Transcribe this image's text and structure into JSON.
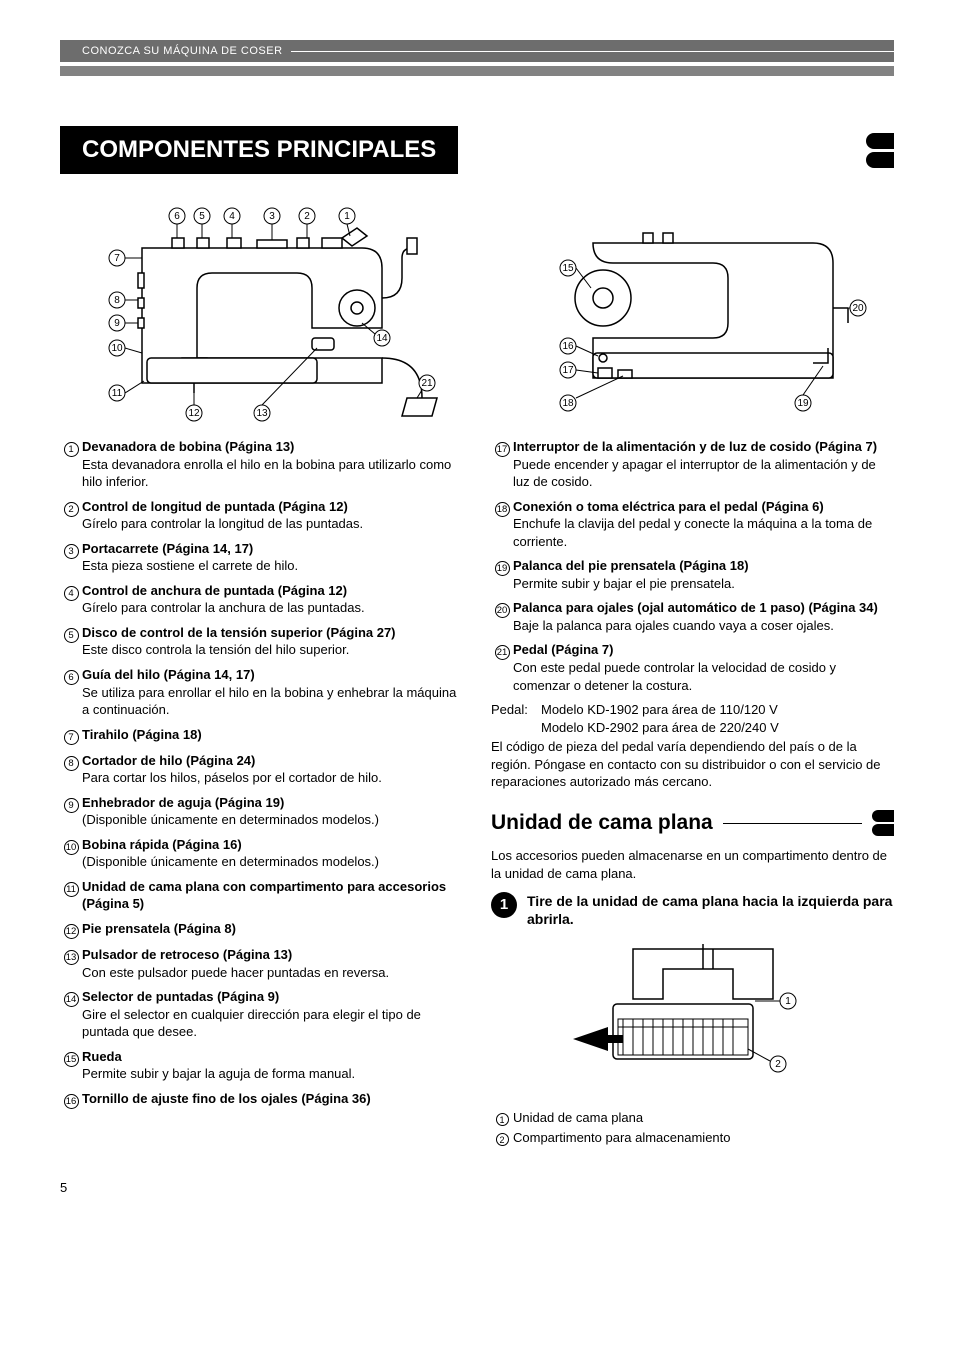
{
  "header": {
    "label": "CONOZCA SU MÁQUINA DE COSER"
  },
  "title": "COMPONENTES PRINCIPALES",
  "left_items": [
    {
      "n": "1",
      "b": "Devanadora de bobina (Página 13)",
      "d": "Esta devanadora enrolla el hilo en la bobina para utilizarlo como hilo inferior."
    },
    {
      "n": "2",
      "b": "Control de longitud de puntada (Página 12)",
      "d": "Gírelo para controlar la longitud de las puntadas."
    },
    {
      "n": "3",
      "b": "Portacarrete (Página 14, 17)",
      "d": "Esta pieza sostiene el carrete de hilo."
    },
    {
      "n": "4",
      "b": "Control de anchura de puntada (Página 12)",
      "d": "Gírelo para controlar la anchura de las puntadas."
    },
    {
      "n": "5",
      "b": "Disco de control de la tensión superior (Página 27)",
      "d": "Este disco controla la tensión del hilo superior."
    },
    {
      "n": "6",
      "b": "Guía del hilo (Página 14, 17)",
      "d": "Se utiliza para enrollar el hilo en la bobina y enhebrar la máquina a continuación."
    },
    {
      "n": "7",
      "b": "Tirahilo (Página 18)",
      "d": ""
    },
    {
      "n": "8",
      "b": "Cortador de hilo (Página 24)",
      "d": "Para cortar los hilos, páselos por el cortador de hilo."
    },
    {
      "n": "9",
      "b": "Enhebrador de aguja (Página 19)",
      "d": "(Disponible únicamente en determinados modelos.)"
    },
    {
      "n": "10",
      "b": "Bobina rápida (Página 16)",
      "d": "(Disponible únicamente en determinados modelos.)"
    },
    {
      "n": "11",
      "b": "Unidad de cama plana con compartimento para accesorios (Página 5)",
      "d": ""
    },
    {
      "n": "12",
      "b": "Pie prensatela (Página 8)",
      "d": ""
    },
    {
      "n": "13",
      "b": "Pulsador de retroceso (Página 13)",
      "d": "Con este pulsador puede hacer puntadas en reversa."
    },
    {
      "n": "14",
      "b": "Selector de puntadas (Página 9)",
      "d": "Gire el selector en cualquier dirección para elegir el tipo de puntada que desee."
    },
    {
      "n": "15",
      "b": "Rueda",
      "d": "Permite subir y bajar la aguja de forma manual."
    },
    {
      "n": "16",
      "b": "Tornillo de ajuste fino de los ojales (Página 36)",
      "d": ""
    }
  ],
  "right_items": [
    {
      "n": "17",
      "b": "Interruptor de la alimentación y de luz de cosido (Página 7)",
      "d": "Puede encender y apagar el interruptor de la alimentación y de luz de cosido."
    },
    {
      "n": "18",
      "b": "Conexión o toma eléctrica para el pedal (Página 6)",
      "d": "Enchufe la clavija del pedal y conecte la máquina a la toma de corriente."
    },
    {
      "n": "19",
      "b": "Palanca del pie prensatela (Página 18)",
      "d": "Permite subir y bajar el pie prensatela."
    },
    {
      "n": "20",
      "b": "Palanca para ojales (ojal automático de 1 paso) (Página 34)",
      "d": "Baje la palanca para ojales cuando vaya a coser ojales."
    },
    {
      "n": "21",
      "b": "Pedal (Página 7)",
      "d": "Con este pedal puede controlar la velocidad de cosido y comenzar o detener la costura."
    }
  ],
  "pedal": {
    "label": "Pedal:",
    "line1": "Modelo KD-1902 para área de 110/120 V",
    "line2": "Modelo KD-2902 para área de 220/240 V",
    "note": "El código de pieza del pedal varía dependiendo del país o de la región. Póngase en contacto con su distribuidor o con el servicio de reparaciones autorizado más cercano."
  },
  "section2": {
    "title": "Unidad de cama plana",
    "intro": "Los accesorios pueden almacenarse en un compartimento dentro de la unidad de cama plana.",
    "step_n": "1",
    "step_text": "Tire de la unidad de cama plana hacia la izquierda para abrirla.",
    "legend": [
      {
        "n": "1",
        "t": "Unidad de cama plana"
      },
      {
        "n": "2",
        "t": "Compartimento para almacenamiento"
      }
    ]
  },
  "page": "5",
  "callouts_front": [
    "6",
    "5",
    "4",
    "3",
    "2",
    "1",
    "7",
    "8",
    "9",
    "10",
    "11",
    "12",
    "13",
    "14",
    "21"
  ],
  "callouts_back": [
    "15",
    "16",
    "17",
    "18",
    "19",
    "20"
  ]
}
